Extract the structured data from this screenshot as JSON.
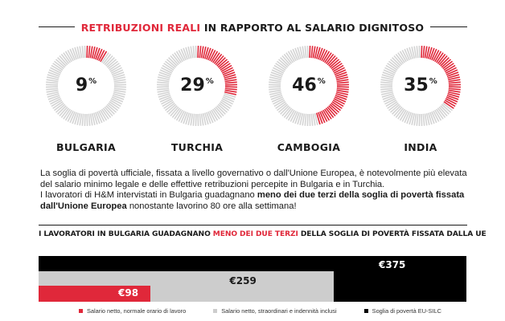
{
  "title": {
    "part1": "RETRIBUZIONI REALI",
    "part2": "IN RAPPORTO AL SALARIO DIGNITOSO"
  },
  "colors": {
    "accent": "#e0283a",
    "ring_grey": "#d4d4d4",
    "bar_grey": "#cdcdcd",
    "black": "#000000"
  },
  "chart_data": [
    {
      "type": "pie",
      "title": "RETRIBUZIONI REALI IN RAPPORTO AL SALARIO DIGNITOSO",
      "categories": [
        "BULGARIA",
        "TURCHIA",
        "CAMBOGIA",
        "INDIA"
      ],
      "values": [
        9,
        29,
        46,
        35
      ],
      "value_labels": [
        "9",
        "29",
        "46",
        "35"
      ],
      "unit": "%"
    },
    {
      "type": "bar",
      "title": "I LAVORATORI IN BULGARIA GUADAGNANO MENO DEI DUE TERZI DELLA SOGLIA DI POVERTÀ FISSATA DALLA UE",
      "series": [
        {
          "name": "Salario netto, normale orario di lavoro",
          "values": [
            98
          ],
          "label": "€98"
        },
        {
          "name": "Salario netto, straordinari e indennità inclusi",
          "values": [
            259
          ],
          "label": "€259"
        },
        {
          "name": "Soglia di povertà EU-SILC",
          "values": [
            375
          ],
          "label": "€375"
        }
      ],
      "xlim": [
        0,
        375
      ]
    }
  ],
  "paragraph": {
    "line1": "La soglia di povertà ufficiale, fissata a livello governativo o dall'Unione Europea, è notevolmente più elevata del salario minimo legale e delle effettive retribuzioni percepite in Bulgaria e in Turchia.",
    "line2_a": "I lavoratori di H&M intervistati in Bulgaria guadagnano ",
    "line2_b": "meno dei due terzi della soglia di povertà fissata dall'Unione Europea",
    "line2_c": " nonostante lavorino 80 ore alla settimana!"
  },
  "subtitle": {
    "a": "I LAVORATORI IN BULGARIA GUADAGNANO ",
    "b": "MENO DEI DUE TERZI",
    "c": " DELLA SOGLIA DI POVERTÀ FISSATA DALLA UE"
  }
}
